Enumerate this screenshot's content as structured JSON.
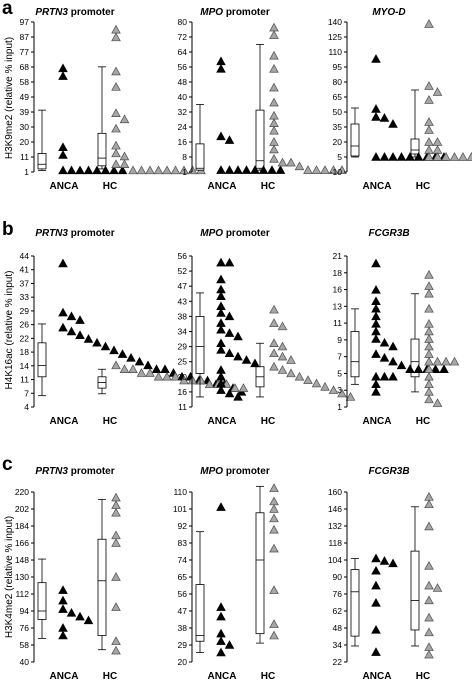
{
  "rows": [
    {
      "letter": "a",
      "ylabel": "H3K9me2 (relative % input)"
    },
    {
      "letter": "b",
      "ylabel": "H4K16ac (relative % input)"
    },
    {
      "letter": "c",
      "ylabel": "H3K4me2 (relative % input)"
    }
  ],
  "colors": {
    "anca_fill": "#000000",
    "hc_fill": "#a6a6a6",
    "hc_stroke": "#4d4d4d",
    "box_stroke": "#000000"
  },
  "chart_data": [
    {
      "type": "box-scatter",
      "row": "a",
      "title_italic": "PRTN3",
      "title_rest": " promoter",
      "ylabel": "H3K9me2 (relative % input)",
      "ylim": [
        0,
        97
      ],
      "yticks": [
        "97",
        "87",
        "77",
        "68",
        "58",
        "49",
        "39",
        "30",
        "20",
        "11",
        "1"
      ],
      "categories": [
        "ANCA",
        "HC"
      ],
      "box": {
        "ANCA": [
          1,
          2,
          5,
          12,
          40
        ],
        "HC": [
          2,
          4,
          9,
          25,
          68
        ]
      },
      "points": {
        "ANCA": [
          67,
          62,
          16,
          11,
          1,
          1,
          1,
          1,
          1,
          1,
          1,
          1
        ],
        "HC": [
          92,
          87,
          65,
          55,
          38,
          34,
          28,
          17,
          12,
          10,
          5,
          5,
          1,
          1,
          1,
          1,
          1,
          1,
          1,
          1,
          1
        ]
      }
    },
    {
      "type": "box-scatter",
      "row": "a",
      "title_italic": "MPO",
      "title_rest": " promoter",
      "ylabel": "",
      "ylim": [
        0,
        80
      ],
      "yticks": [
        "80",
        "72",
        "64",
        "56",
        "48",
        "40",
        "32",
        "24",
        "16",
        "8",
        "1"
      ],
      "categories": [
        "ANCA",
        "HC"
      ],
      "box": {
        "ANCA": [
          1,
          1,
          2,
          15,
          36
        ],
        "HC": [
          1,
          2,
          6,
          33,
          68
        ]
      },
      "points": {
        "ANCA": [
          59,
          55,
          19,
          17,
          1,
          1,
          1,
          1,
          1,
          1,
          1,
          1
        ],
        "HC": [
          77,
          73,
          62,
          55,
          45,
          37,
          30,
          26,
          22,
          16,
          12,
          7,
          5,
          5,
          3,
          1,
          1,
          1,
          1,
          1
        ]
      }
    },
    {
      "type": "box-scatter",
      "row": "a",
      "title_italic": "MYO-D",
      "title_rest": "",
      "ylabel": "",
      "ylim": [
        -10,
        140
      ],
      "yticks": [
        "140",
        "125",
        "110",
        "95",
        "80",
        "65",
        "50",
        "35",
        "20",
        "5",
        "-10"
      ],
      "categories": [
        "ANCA",
        "HC"
      ],
      "box": {
        "ANCA": [
          5,
          6,
          16,
          38,
          54
        ],
        "HC": [
          5,
          8,
          12,
          23,
          72
        ]
      },
      "points": {
        "ANCA": [
          103,
          53,
          45,
          44,
          38,
          5,
          5,
          5,
          5,
          5,
          5,
          5,
          5,
          5
        ],
        "HC": [
          138,
          76,
          70,
          62,
          40,
          32,
          20,
          20,
          12,
          12,
          5,
          5,
          5,
          5,
          5,
          5,
          5,
          5,
          5,
          5
        ]
      }
    },
    {
      "type": "box-scatter",
      "row": "b",
      "title_italic": "PRTN3",
      "title_rest": " promoter",
      "ylabel": "H4K16ac (relative % input)",
      "ylim": [
        4,
        44
      ],
      "yticks": [
        "44",
        "41",
        "37",
        "33",
        "29",
        "26",
        "22",
        "18",
        "14",
        "11",
        "7",
        "4"
      ],
      "categories": [
        "ANCA",
        "HC"
      ],
      "box": {
        "ANCA": [
          7,
          12,
          15,
          21,
          26
        ],
        "HC": [
          7.5,
          9,
          10.5,
          12,
          14
        ]
      },
      "points": {
        "ANCA": [
          42,
          29,
          28,
          27,
          25,
          24,
          23,
          22,
          21,
          20,
          19,
          18,
          17,
          16,
          15,
          14,
          14,
          13,
          12,
          12,
          11,
          11,
          10,
          10,
          9,
          8
        ],
        "HC": [
          15,
          14,
          14,
          13,
          13,
          12,
          12,
          12,
          11,
          11,
          11,
          10,
          10,
          10,
          9,
          9
        ]
      }
    },
    {
      "type": "box-scatter",
      "row": "b",
      "title_italic": "MPO",
      "title_rest": " promoter",
      "ylabel": "",
      "ylim": [
        11,
        56
      ],
      "yticks": [
        "56",
        "52",
        "47",
        "43",
        "38",
        "34",
        "29",
        "25",
        "20",
        "16",
        "11"
      ],
      "categories": [
        "ANCA",
        "HC"
      ],
      "box": {
        "ANCA": [
          14,
          21,
          29,
          38,
          45
        ],
        "HC": [
          14,
          17,
          20,
          23,
          30
        ]
      },
      "points": {
        "ANCA": [
          54,
          54,
          49,
          46,
          44,
          41,
          39,
          38,
          36,
          34,
          33,
          32,
          30,
          28,
          27,
          26,
          25,
          24,
          22,
          20,
          18,
          16,
          15,
          14
        ],
        "HC": [
          40,
          36,
          35,
          30,
          29,
          27,
          26,
          25,
          23,
          22,
          21,
          20,
          19,
          18,
          17,
          16,
          15,
          14
        ]
      }
    },
    {
      "type": "box-scatter",
      "row": "b",
      "title_italic": "FCGR3B",
      "title_rest": "",
      "ylabel": "",
      "ylim": [
        1,
        21
      ],
      "yticks": [
        "21",
        "18",
        "16",
        "13",
        "11",
        "9",
        "7",
        "5",
        "3",
        "1"
      ],
      "categories": [
        "ANCA",
        "HC"
      ],
      "box": {
        "ANCA": [
          4,
          5,
          7,
          11,
          14
        ],
        "HC": [
          3,
          5,
          7,
          10,
          16
        ]
      },
      "points": {
        "ANCA": [
          20,
          16.5,
          15,
          14,
          13,
          12,
          11,
          10,
          9.5,
          9,
          8,
          7.5,
          7,
          6.5,
          6,
          6,
          6,
          6,
          6,
          5,
          5,
          5,
          4,
          3
        ],
        "HC": [
          18.5,
          17,
          16,
          14,
          12,
          11,
          10,
          9,
          8,
          7,
          7,
          7,
          7,
          6,
          5,
          4,
          3,
          2,
          1.5
        ]
      }
    },
    {
      "type": "box-scatter",
      "row": "c",
      "title_italic": "PRTN3",
      "title_rest": " promoter",
      "ylabel": "H3K4me2 (relative % input)",
      "ylim": [
        40,
        220
      ],
      "yticks": [
        "220",
        "202",
        "184",
        "166",
        "148",
        "130",
        "112",
        "94",
        "76",
        "58",
        "40"
      ],
      "categories": [
        "ANCA",
        "HC"
      ],
      "box": {
        "ANCA": [
          65,
          85,
          94,
          124,
          149
        ],
        "HC": [
          53,
          68,
          126,
          170,
          212
        ]
      },
      "points": {
        "ANCA": [
          116,
          105,
          96,
          92,
          88,
          84,
          76,
          68
        ],
        "HC": [
          214,
          206,
          198,
          174,
          166,
          130,
          98,
          62,
          52
        ]
      }
    },
    {
      "type": "box-scatter",
      "row": "c",
      "title_italic": "MPO",
      "title_rest": " promoter",
      "ylabel": "",
      "ylim": [
        20,
        110
      ],
      "yticks": [
        "110",
        "101",
        "92",
        "83",
        "74",
        "65",
        "56",
        "47",
        "38",
        "29",
        "20"
      ],
      "categories": [
        "ANCA",
        "HC"
      ],
      "box": {
        "ANCA": [
          25,
          31,
          34,
          61,
          89
        ],
        "HC": [
          30,
          35,
          74,
          99,
          113
        ]
      },
      "points": {
        "ANCA": [
          102,
          49,
          44,
          35,
          31,
          29,
          25
        ],
        "HC": [
          112,
          105,
          101,
          96,
          90,
          80,
          58,
          40,
          34
        ]
      }
    },
    {
      "type": "box-scatter",
      "row": "c",
      "title_italic": "FCGR3B",
      "title_rest": "",
      "ylabel": "",
      "ylim": [
        22,
        160
      ],
      "yticks": [
        "160",
        "146",
        "132",
        "118",
        "104",
        "90",
        "76",
        "62",
        "48",
        "34",
        "22"
      ],
      "categories": [
        "ANCA",
        "HC"
      ],
      "box": {
        "ANCA": [
          35,
          43,
          79,
          97,
          106
        ],
        "HC": [
          35,
          48,
          72,
          112,
          148
        ]
      },
      "points": {
        "ANCA": [
          106,
          104,
          102,
          96,
          84,
          70,
          48,
          30
        ],
        "HC": [
          156,
          150,
          132,
          100,
          84,
          82,
          72,
          58,
          46,
          34,
          28
        ]
      }
    }
  ]
}
